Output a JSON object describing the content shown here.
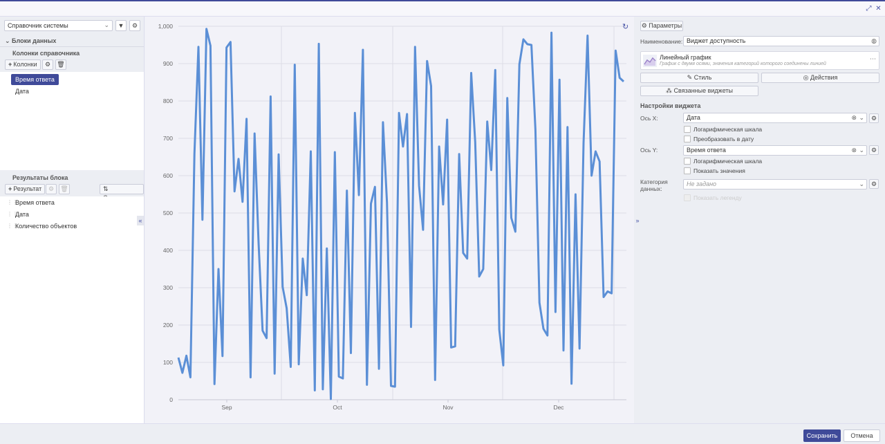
{
  "colors": {
    "accent": "#3f4a99",
    "line": "#5b8fd6"
  },
  "window": {
    "restore_icon": "restore-icon",
    "close_icon": "close-icon"
  },
  "left": {
    "source_select": "Справочник системы",
    "data_blocks_title": "Блоки данных",
    "columns_title": "Колонки справочника",
    "columns_add": "Колонки",
    "columns": [
      "Время ответа",
      "Дата"
    ],
    "results_title": "Результаты блока",
    "results_add": "Результат",
    "sort_label": "Сортировка",
    "results": [
      "Время ответа",
      "Дата",
      "Количество объектов"
    ]
  },
  "right": {
    "params_label": "Параметры",
    "name_label": "Наименование:",
    "name_value": "Виджет доступность",
    "type_title": "Линейный график",
    "type_desc": "График с двумя осями, значения категорий которого соединены линией",
    "style_label": "Стиль",
    "actions_label": "Действия",
    "linked_label": "Связанные виджеты",
    "settings_title": "Настройки виджета",
    "x_label": "Ось X:",
    "x_value": "Дата",
    "x_log": "Логарифмическая шкала",
    "x_date": "Преобразовать в дату",
    "y_label": "Ось Y:",
    "y_value": "Время ответа",
    "y_log": "Логарифмическая шкала",
    "y_show": "Показать значения",
    "category_label": "Категория данных:",
    "category_placeholder": "Не задано",
    "legend_label": "Показать легенду"
  },
  "footer": {
    "save": "Сохранить",
    "cancel": "Отмена"
  },
  "chart_data": {
    "type": "line",
    "xlabel": "",
    "ylabel": "",
    "ylim": [
      0,
      1000
    ],
    "yticks": [
      "0",
      "100",
      "200",
      "300",
      "400",
      "500",
      "600",
      "700",
      "800",
      "900",
      "1,000"
    ],
    "xticks": [
      "Sep",
      "Oct",
      "Nov",
      "Dec"
    ],
    "grid": true,
    "series": [
      {
        "values": [
          113,
          72,
          118,
          60,
          658,
          945,
          482,
          993,
          948,
          42,
          350,
          117,
          943,
          958,
          558,
          645,
          530,
          752,
          60,
          713,
          420,
          185,
          165,
          812,
          70,
          657,
          302,
          245,
          88,
          897,
          95,
          378,
          280,
          665,
          25,
          953,
          28,
          405,
          2,
          663,
          62,
          57,
          560,
          125,
          768,
          548,
          937,
          40,
          525,
          570,
          83,
          743,
          528,
          37,
          35,
          768,
          678,
          765,
          195,
          945,
          573,
          455,
          907,
          840,
          53,
          678,
          523,
          750,
          140,
          143,
          658,
          393,
          378,
          875,
          690,
          330,
          350,
          745,
          615,
          883,
          188,
          92,
          808,
          487,
          450,
          898,
          965,
          952,
          950,
          723,
          260,
          190,
          172,
          983,
          235,
          857,
          132,
          730,
          43,
          550,
          137,
          687,
          975,
          600,
          665,
          638,
          275,
          290,
          285,
          935,
          862,
          852
        ]
      }
    ]
  }
}
